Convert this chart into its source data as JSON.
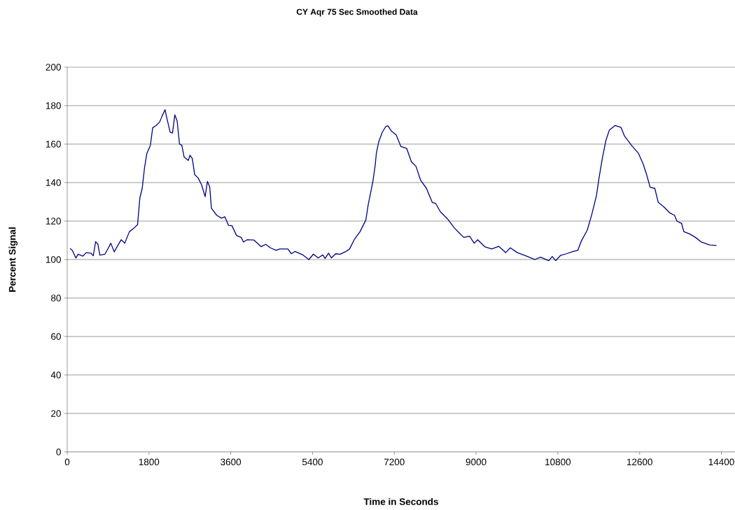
{
  "chart_data": {
    "type": "line",
    "title": "CY Aqr 75 Sec Smoothed Data",
    "xlabel": "Time in Seconds",
    "ylabel": "Percent Signal",
    "xlim": [
      0,
      14700
    ],
    "xticks": [
      0,
      1800,
      3600,
      5400,
      7200,
      9000,
      10800,
      12600,
      14400
    ],
    "ylim": [
      0,
      200
    ],
    "yticks": [
      0,
      20,
      40,
      60,
      80,
      100,
      120,
      140,
      160,
      180,
      200
    ],
    "grid": "y",
    "marker": "none",
    "line_style": "solid",
    "series": [
      {
        "color": "#000080",
        "x": [
          62,
          112,
          190,
          241,
          344,
          421,
          523,
          574,
          626,
          677,
          718,
          831,
          908,
          959,
          1036,
          1113,
          1190,
          1267,
          1369,
          1472,
          1549,
          1600,
          1651,
          1703,
          1754,
          1831,
          1882,
          1959,
          2036,
          2087,
          2154,
          2190,
          2267,
          2318,
          2369,
          2420,
          2472,
          2523,
          2574,
          2666,
          2703,
          2754,
          2805,
          2882,
          2959,
          3036,
          3087,
          3138,
          3174,
          3292,
          3395,
          3472,
          3549,
          3626,
          3728,
          3831,
          3882,
          3959,
          4113,
          4267,
          4369,
          4472,
          4600,
          4677,
          4857,
          4934,
          5011,
          5190,
          5318,
          5421,
          5523,
          5626,
          5677,
          5754,
          5815,
          5908,
          6011,
          6138,
          6215,
          6318,
          6446,
          6574,
          6626,
          6729,
          6780,
          6805,
          6857,
          6934,
          7011,
          7062,
          7138,
          7241,
          7344,
          7472,
          7575,
          7677,
          7780,
          7908,
          8036,
          8113,
          8215,
          8369,
          8523,
          8626,
          8729,
          8857,
          8959,
          9036,
          9190,
          9344,
          9498,
          9651,
          9754,
          9908,
          10113,
          10292,
          10421,
          10600,
          10677,
          10754,
          10857,
          10985,
          11138,
          11241,
          11318,
          11446,
          11549,
          11651,
          11703,
          11780,
          11857,
          11934,
          12062,
          12190,
          12267,
          12421,
          12575,
          12677,
          12754,
          12831,
          12934,
          13011,
          13138,
          13267,
          13369,
          13421,
          13523,
          13574,
          13703,
          13831,
          13959,
          14138,
          14292
        ],
        "values": [
          105.7,
          104.8,
          100.8,
          102.8,
          101.8,
          103.6,
          103.3,
          102,
          109.3,
          107.9,
          102.3,
          102.8,
          106.1,
          108.5,
          104,
          107.3,
          110.3,
          108.5,
          114.5,
          116.4,
          118.2,
          132.1,
          137,
          147.9,
          155.2,
          159.4,
          168.5,
          169.7,
          171.5,
          174.5,
          177.9,
          173.9,
          166.1,
          165.8,
          175.2,
          172.1,
          160,
          159.4,
          153.3,
          151.5,
          154.2,
          152.5,
          144.2,
          142.4,
          138.8,
          132.7,
          140.6,
          137.6,
          126.7,
          123,
          121.5,
          122.2,
          117.8,
          117.6,
          112.5,
          111.5,
          109.1,
          110.3,
          110.1,
          106.7,
          107.9,
          106.1,
          104.8,
          105.5,
          105.5,
          103,
          104.2,
          102.4,
          100,
          102.8,
          100.8,
          102.4,
          100.6,
          103.3,
          100.8,
          103,
          102.8,
          104.2,
          105.5,
          110.3,
          114.5,
          120.6,
          128.5,
          140.6,
          149.1,
          155.2,
          161.2,
          166.1,
          169.1,
          169.5,
          166.7,
          164.8,
          158.8,
          157.8,
          150.9,
          148.5,
          141.2,
          137,
          129.7,
          129.1,
          124.8,
          121.2,
          116.4,
          113.9,
          111.5,
          112.1,
          108.5,
          110.3,
          106.7,
          105.5,
          106.9,
          103.6,
          106.1,
          103.6,
          101.8,
          100,
          101.2,
          99.4,
          101.6,
          99.4,
          102.1,
          103,
          104.2,
          104.8,
          109.7,
          115.2,
          123.6,
          133.3,
          141.8,
          152.7,
          161.8,
          167.3,
          169.7,
          168.7,
          164.2,
          159.4,
          155.2,
          149.7,
          144.2,
          137.6,
          137,
          129.7,
          127.3,
          124.2,
          123,
          120,
          118.8,
          114.5,
          113.3,
          111.5,
          109.1,
          107.6,
          107.3
        ]
      }
    ]
  }
}
